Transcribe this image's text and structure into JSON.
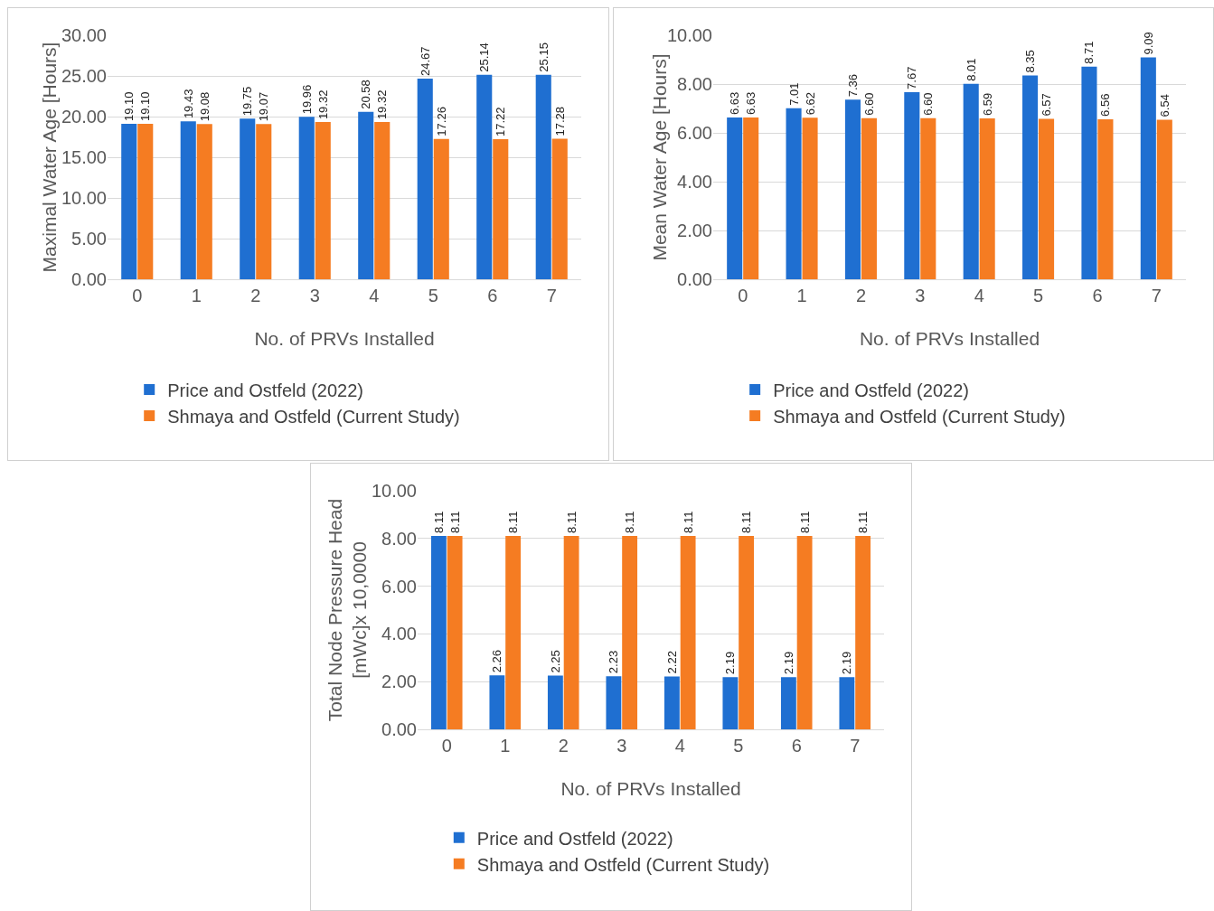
{
  "chart_data": [
    {
      "type": "bar",
      "xlabel": "No. of PRVs Installed",
      "ylabel": "Maximal Water Age [Hours]",
      "categories": [
        "0",
        "1",
        "2",
        "3",
        "4",
        "5",
        "6",
        "7"
      ],
      "ylim": [
        0,
        30
      ],
      "yticks": [
        {
          "value": 0,
          "label": "0.00"
        },
        {
          "value": 5,
          "label": "5.00"
        },
        {
          "value": 10,
          "label": "10.00"
        },
        {
          "value": 15,
          "label": "15.00"
        },
        {
          "value": 20,
          "label": "20.00"
        },
        {
          "value": 25,
          "label": "25.00"
        },
        {
          "value": 30,
          "label": "30.00"
        }
      ],
      "grid": "y",
      "legend": "bottom",
      "series": [
        {
          "name": "Price and Ostfeld (2022)",
          "color": "#1f6fd1",
          "values": [
            19.1,
            19.43,
            19.75,
            19.96,
            20.58,
            24.67,
            25.14,
            25.15
          ],
          "value_labels": [
            "19.10",
            "19.43",
            "19.75",
            "19.96",
            "20.58",
            "24.67",
            "25.14",
            "25.15"
          ]
        },
        {
          "name": "Shmaya and Ostfeld (Current Study)",
          "color": "#f57c22",
          "values": [
            19.1,
            19.08,
            19.07,
            19.32,
            19.32,
            17.26,
            17.22,
            17.28
          ],
          "value_labels": [
            "19.10",
            "19.08",
            "19.07",
            "19.32",
            "19.32",
            "17.26",
            "17.22",
            "17.28"
          ]
        }
      ]
    },
    {
      "type": "bar",
      "xlabel": "No. of PRVs Installed",
      "ylabel": "Mean Water Age [Hours]",
      "categories": [
        "0",
        "1",
        "2",
        "3",
        "4",
        "5",
        "6",
        "7"
      ],
      "ylim": [
        0,
        10
      ],
      "yticks": [
        {
          "value": 0,
          "label": "0.00"
        },
        {
          "value": 2,
          "label": "2.00"
        },
        {
          "value": 4,
          "label": "4.00"
        },
        {
          "value": 6,
          "label": "6.00"
        },
        {
          "value": 8,
          "label": "8.00"
        },
        {
          "value": 10,
          "label": "10.00"
        }
      ],
      "grid": "y",
      "legend": "bottom",
      "series": [
        {
          "name": "Price and Ostfeld (2022)",
          "color": "#1f6fd1",
          "values": [
            6.63,
            7.01,
            7.36,
            7.67,
            8.01,
            8.35,
            8.71,
            9.09
          ],
          "value_labels": [
            "6.63",
            "7.01",
            "7.36",
            "7.67",
            "8.01",
            "8.35",
            "8.71",
            "9.09"
          ]
        },
        {
          "name": "Shmaya and Ostfeld (Current Study)",
          "color": "#f57c22",
          "values": [
            6.63,
            6.62,
            6.6,
            6.6,
            6.59,
            6.57,
            6.56,
            6.54
          ],
          "value_labels": [
            "6.63",
            "6.62",
            "6.60",
            "6.60",
            "6.59",
            "6.57",
            "6.56",
            "6.54"
          ]
        }
      ]
    },
    {
      "type": "bar",
      "xlabel": "No. of PRVs Installed",
      "ylabel": "Total Node Pressure Head\n[mWc]x 10,0000",
      "categories": [
        "0",
        "1",
        "2",
        "3",
        "4",
        "5",
        "6",
        "7"
      ],
      "ylim": [
        0,
        10
      ],
      "yticks": [
        {
          "value": 0,
          "label": "0.00"
        },
        {
          "value": 2,
          "label": "2.00"
        },
        {
          "value": 4,
          "label": "4.00"
        },
        {
          "value": 6,
          "label": "6.00"
        },
        {
          "value": 8,
          "label": "8.00"
        },
        {
          "value": 10,
          "label": "10.00"
        }
      ],
      "grid": "y",
      "legend": "bottom",
      "series": [
        {
          "name": "Price and Ostfeld (2022)",
          "color": "#1f6fd1",
          "values": [
            8.11,
            2.26,
            2.25,
            2.23,
            2.22,
            2.19,
            2.19,
            2.19
          ],
          "value_labels": [
            "8.11",
            "2.26",
            "2.25",
            "2.23",
            "2.22",
            "2.19",
            "2.19",
            "2.19"
          ]
        },
        {
          "name": "Shmaya and Ostfeld (Current Study)",
          "color": "#f57c22",
          "values": [
            8.11,
            8.11,
            8.11,
            8.11,
            8.11,
            8.11,
            8.11,
            8.11
          ],
          "value_labels": [
            "8.11",
            "8.11",
            "8.11",
            "8.11",
            "8.11",
            "8.11",
            "8.11",
            "8.11"
          ]
        }
      ]
    }
  ]
}
